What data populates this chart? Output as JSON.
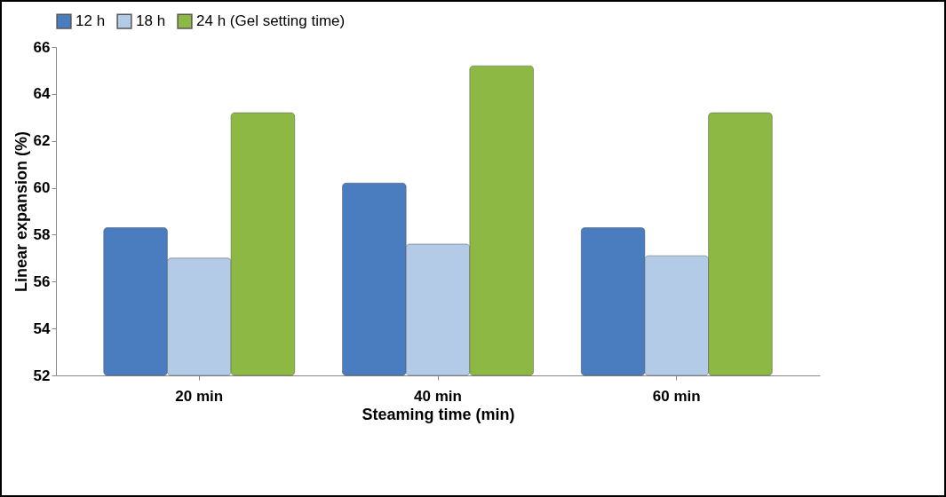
{
  "chart_data": {
    "type": "bar",
    "xlabel": "Steaming time (min)",
    "ylabel": "Linear expansion (%)",
    "categories": [
      "20 min",
      "40 min",
      "60 min"
    ],
    "series": [
      {
        "name": "12 h",
        "color": "#4a7cc0",
        "values": [
          58.3,
          60.2,
          58.3
        ]
      },
      {
        "name": "18 h",
        "color": "#b4cbe8",
        "values": [
          57.0,
          57.6,
          57.1
        ]
      },
      {
        "name": "24 h (Gel setting time)",
        "color": "#8db843",
        "values": [
          63.2,
          65.2,
          63.2
        ]
      }
    ],
    "ylim": [
      52,
      66
    ],
    "yticks": [
      52,
      54,
      56,
      58,
      60,
      62,
      64,
      66
    ],
    "legend": "top",
    "grid": false
  }
}
